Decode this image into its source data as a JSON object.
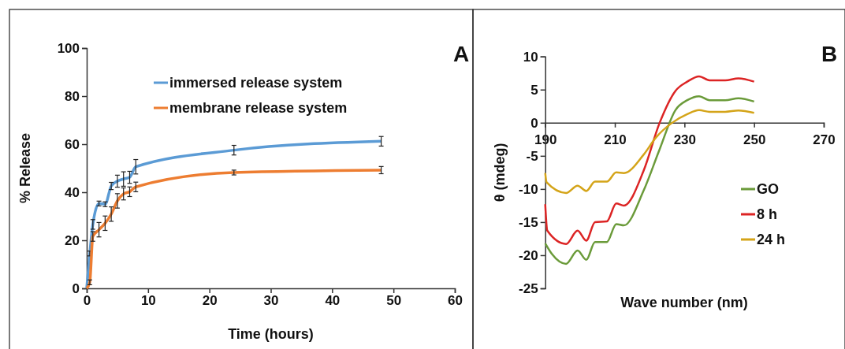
{
  "chart_data": [
    {
      "type": "line",
      "xlabel": "Time (hours)",
      "ylabel": "% Release",
      "annotations": [
        "A"
      ],
      "xlim": [
        0,
        60
      ],
      "xticks": [
        0,
        10,
        20,
        30,
        40,
        50,
        60
      ],
      "ylim": [
        0,
        100
      ],
      "yticks": [
        0,
        20,
        40,
        60,
        80,
        100
      ],
      "legend": "top",
      "grid": false,
      "marker": "none",
      "line_style": "solid",
      "series": [
        {
          "name": "immersed release system",
          "color": "#5b9bd5",
          "x": [
            0,
            0.5,
            1,
            2,
            3,
            4,
            5,
            6,
            7,
            8,
            24,
            48
          ],
          "values": [
            0,
            14.5,
            26.6,
            35.3,
            35,
            42.6,
            44.6,
            45.5,
            46.2,
            50.6,
            57.5,
            61.2
          ],
          "errors": [
            null,
            1,
            2,
            1,
            1,
            1.5,
            2.5,
            3,
            2.5,
            3,
            2,
            2
          ]
        },
        {
          "name": "membrane release system",
          "color": "#ed7d31",
          "x": [
            0,
            0.5,
            1,
            2,
            3,
            4,
            5,
            6,
            7,
            8,
            24,
            48
          ],
          "values": [
            0,
            2.5,
            21.6,
            24.4,
            27.1,
            30.9,
            36.4,
            39.3,
            40.2,
            42.2,
            48.2,
            49.2
          ],
          "errors": [
            null,
            1,
            2,
            3,
            3,
            3,
            3,
            2.5,
            2,
            2,
            1,
            1.5
          ]
        }
      ]
    },
    {
      "type": "line",
      "xlabel": "Wave number (nm)",
      "ylabel": "θ (mdeg)",
      "annotations": [
        "B"
      ],
      "xlim": [
        190,
        270
      ],
      "xticks": [
        190,
        210,
        230,
        250,
        270
      ],
      "ylim": [
        -25,
        10
      ],
      "yticks": [
        -25,
        -20,
        -15,
        -10,
        -5,
        0,
        5,
        10
      ],
      "legend": "right",
      "grid": false,
      "marker": "none",
      "line_style": "solid",
      "series": [
        {
          "name": "GO",
          "color": "#6b9b3a",
          "x": [
            190,
            191.9,
            196,
            199.3,
            201.8,
            204.3,
            207.7,
            210.4,
            212.6,
            218.3,
            222.8,
            227.4,
            230.8,
            234.2,
            237.2,
            241.7,
            245.5,
            250
          ],
          "values": [
            -18.2,
            -19.8,
            -21.3,
            -19.3,
            -20.7,
            -18,
            -18,
            -15.3,
            -15.5,
            -10.2,
            -4.1,
            1.9,
            3.4,
            4,
            3.4,
            3.4,
            3.7,
            3.2
          ]
        },
        {
          "name": "8 h",
          "color": "#dc2424",
          "x": [
            190,
            190.6,
            196,
            199.3,
            201.8,
            204.3,
            207.7,
            210.4,
            212.6,
            218.3,
            222.8,
            227.4,
            230.8,
            234.2,
            237.2,
            241.7,
            245.5,
            250
          ],
          "values": [
            -12.3,
            -16.3,
            -18.3,
            -16.3,
            -17.8,
            -15,
            -14.9,
            -12.2,
            -12.5,
            -7.2,
            -0.1,
            4.8,
            6.2,
            7,
            6.4,
            6.4,
            6.7,
            6.2
          ]
        },
        {
          "name": "24 h",
          "color": "#d4a419",
          "x": [
            190,
            190.4,
            196,
            199.3,
            201.8,
            204.3,
            207.7,
            210.4,
            212.6,
            218.3,
            221.7,
            226.2,
            230.8,
            234.2,
            237.2,
            241.7,
            245.5,
            250
          ],
          "values": [
            -7.6,
            -9,
            -10.6,
            -9.5,
            -10.3,
            -8.9,
            -8.9,
            -7.5,
            -7.6,
            -4.8,
            -2.3,
            -0.1,
            1.3,
            1.9,
            1.65,
            1.65,
            1.85,
            1.5
          ]
        }
      ]
    }
  ]
}
